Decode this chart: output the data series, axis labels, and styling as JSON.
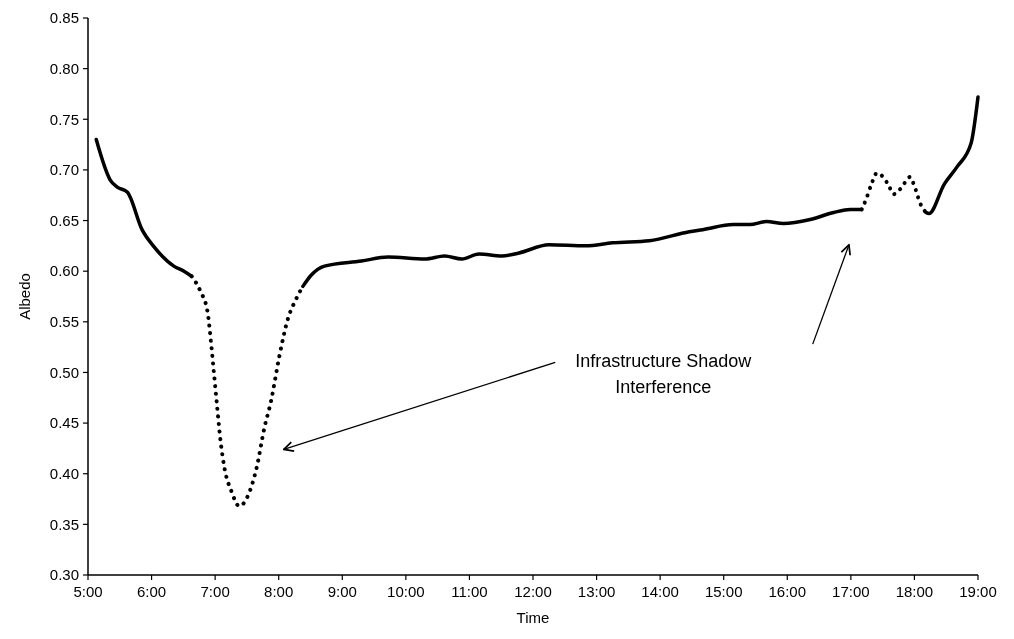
{
  "chart_data": {
    "type": "line",
    "xlabel": "Time",
    "ylabel": "Albedo",
    "xlim": [
      5,
      19
    ],
    "ylim": [
      0.3,
      0.85
    ],
    "xticks": [
      {
        "value": 5,
        "label": "5:00"
      },
      {
        "value": 6,
        "label": "6:00"
      },
      {
        "value": 7,
        "label": "7:00"
      },
      {
        "value": 8,
        "label": "8:00"
      },
      {
        "value": 9,
        "label": "9:00"
      },
      {
        "value": 10,
        "label": "10:00"
      },
      {
        "value": 11,
        "label": "11:00"
      },
      {
        "value": 12,
        "label": "12:00"
      },
      {
        "value": 13,
        "label": "13:00"
      },
      {
        "value": 14,
        "label": "14:00"
      },
      {
        "value": 15,
        "label": "15:00"
      },
      {
        "value": 16,
        "label": "16:00"
      },
      {
        "value": 17,
        "label": "17:00"
      },
      {
        "value": 18,
        "label": "18:00"
      },
      {
        "value": 19,
        "label": "19:00"
      }
    ],
    "yticks": [
      {
        "value": 0.3,
        "label": "0.30"
      },
      {
        "value": 0.35,
        "label": "0.35"
      },
      {
        "value": 0.4,
        "label": "0.40"
      },
      {
        "value": 0.45,
        "label": "0.45"
      },
      {
        "value": 0.5,
        "label": "0.50"
      },
      {
        "value": 0.55,
        "label": "0.55"
      },
      {
        "value": 0.6,
        "label": "0.60"
      },
      {
        "value": 0.65,
        "label": "0.65"
      },
      {
        "value": 0.7,
        "label": "0.70"
      },
      {
        "value": 0.75,
        "label": "0.75"
      },
      {
        "value": 0.8,
        "label": "0.80"
      },
      {
        "value": 0.85,
        "label": "0.85"
      }
    ],
    "grid": false,
    "series": [
      {
        "color": "#000000",
        "line_style": "solid",
        "x": [
          5.13,
          5.35,
          5.46,
          5.62,
          5.85,
          6.04,
          6.35,
          6.51,
          6.63
        ],
        "values": [
          0.73,
          0.69,
          0.683,
          0.678,
          0.641,
          0.624,
          0.605,
          0.6,
          0.595
        ]
      },
      {
        "color": "#000000",
        "line_style": "dotted",
        "x": [
          6.63,
          6.77,
          6.88,
          6.93,
          6.97,
          7.03,
          7.08,
          7.14,
          7.26,
          7.38,
          7.54,
          7.66,
          7.77,
          7.88,
          8.01,
          8.14,
          8.27,
          8.38
        ],
        "values": [
          0.595,
          0.58,
          0.56,
          0.533,
          0.507,
          0.467,
          0.435,
          0.408,
          0.382,
          0.368,
          0.382,
          0.408,
          0.444,
          0.472,
          0.516,
          0.552,
          0.572,
          0.585
        ]
      },
      {
        "color": "#000000",
        "line_style": "solid",
        "x": [
          8.38,
          8.51,
          8.72,
          9.3,
          9.72,
          10.3,
          10.61,
          10.88,
          11.15,
          11.51,
          11.78,
          12.25,
          12.83,
          13.25,
          13.83,
          14.46,
          14.67,
          15.15,
          15.41,
          15.67,
          15.94,
          16.36,
          16.73,
          16.99,
          17.17
        ],
        "values": [
          0.585,
          0.596,
          0.605,
          0.61,
          0.614,
          0.612,
          0.615,
          0.612,
          0.617,
          0.615,
          0.618,
          0.626,
          0.625,
          0.628,
          0.63,
          0.639,
          0.641,
          0.646,
          0.646,
          0.649,
          0.647,
          0.651,
          0.658,
          0.661,
          0.661
        ]
      },
      {
        "color": "#000000",
        "line_style": "dotted",
        "x": [
          17.17,
          17.24,
          17.33,
          17.41,
          17.52,
          17.6,
          17.67,
          17.79,
          17.93,
          18.0,
          18.09,
          18.18
        ],
        "values": [
          0.661,
          0.671,
          0.687,
          0.697,
          0.692,
          0.684,
          0.676,
          0.682,
          0.693,
          0.684,
          0.667,
          0.658
        ]
      },
      {
        "color": "#000000",
        "line_style": "solid",
        "x": [
          18.18,
          18.23,
          18.47,
          18.67,
          18.89,
          19.0
        ],
        "values": [
          0.658,
          0.657,
          0.686,
          0.703,
          0.726,
          0.772
        ]
      }
    ],
    "annotations": [
      "Infrastructure Shadow\nInterference"
    ]
  }
}
